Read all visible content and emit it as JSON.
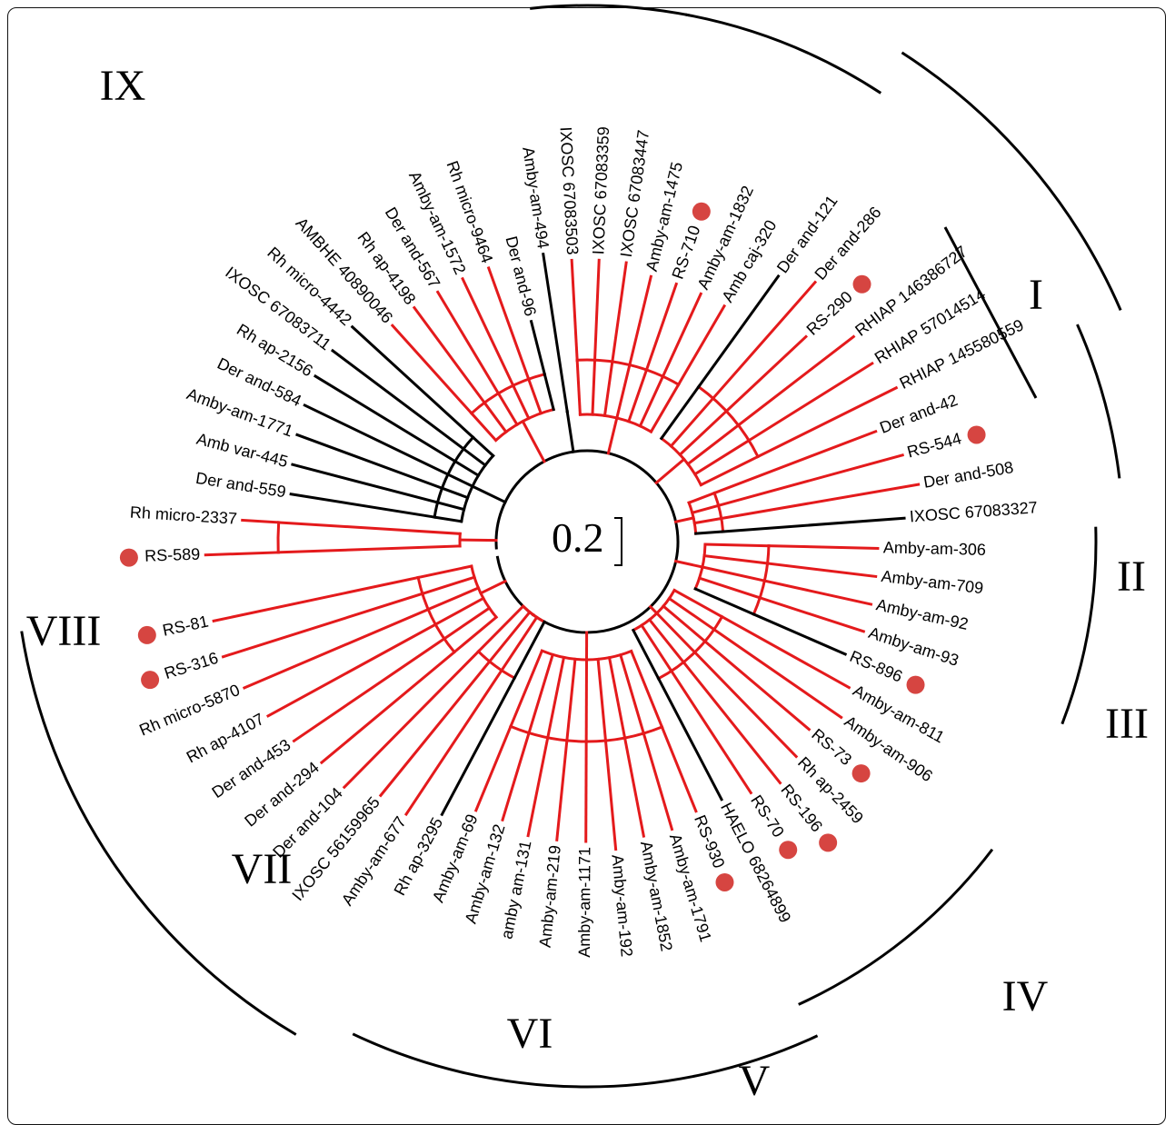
{
  "scale_label": "0.2",
  "colors": {
    "highlight": "#e41a1c",
    "default": "#000000",
    "marker": "#d64541"
  },
  "clades": [
    "I",
    "II",
    "III",
    "IV",
    "V",
    "VI",
    "VII",
    "VIII",
    "IX"
  ],
  "leaves": [
    {
      "label": "RS-589",
      "red": true,
      "dot": true
    },
    {
      "label": "Rh micro-2337",
      "red": true
    },
    {
      "label": "Der and-559"
    },
    {
      "label": "Amb var-445"
    },
    {
      "label": "Amby-am-1771"
    },
    {
      "label": "Der and-584"
    },
    {
      "label": "Rh ap-2156"
    },
    {
      "label": "IXOSC 67083711"
    },
    {
      "label": "Rh micro-4442"
    },
    {
      "label": "AMBHE 40890046",
      "red": true
    },
    {
      "label": "Rh ap-4198",
      "red": true
    },
    {
      "label": "Der and-567",
      "red": true
    },
    {
      "label": "Amby-am-1572",
      "red": true
    },
    {
      "label": "Rh micro-9464",
      "red": true
    },
    {
      "label": "Der and-96"
    },
    {
      "label": "Amby-am-494"
    },
    {
      "label": "IXOSC 67083503",
      "red": true
    },
    {
      "label": "IXOSC 67083359",
      "red": true
    },
    {
      "label": "IXOSC 67083447",
      "red": true
    },
    {
      "label": "Amby-am-1475",
      "red": true
    },
    {
      "label": "RS-710",
      "red": true,
      "dot": true
    },
    {
      "label": "Amby-am-1832",
      "red": true
    },
    {
      "label": "Amb caj-320",
      "red": true
    },
    {
      "label": "Der and-121"
    },
    {
      "label": "Der and-286",
      "red": true
    },
    {
      "label": "RS-290",
      "red": true,
      "dot": true
    },
    {
      "label": "RHIAP 146386727",
      "red": true
    },
    {
      "label": "RHIAP 57014514",
      "red": true
    },
    {
      "label": "RHIAP 145580559",
      "red": true
    },
    {
      "label": "Der and-42",
      "red": true
    },
    {
      "label": "RS-544",
      "red": true,
      "dot": true
    },
    {
      "label": "Der and-508",
      "red": true
    },
    {
      "label": "IXOSC 67083327"
    },
    {
      "label": "Amby-am-306",
      "red": true
    },
    {
      "label": "Amby-am-709",
      "red": true
    },
    {
      "label": "Amby-am-92",
      "red": true
    },
    {
      "label": "Amby-am-93",
      "red": true
    },
    {
      "label": "RS-896",
      "dot": true
    },
    {
      "label": "Amby-am-811",
      "red": true
    },
    {
      "label": "Amby-am-906",
      "red": true
    },
    {
      "label": "RS-73",
      "red": true,
      "dot": true
    },
    {
      "label": "Rh ap-2459",
      "red": true
    },
    {
      "label": "RS-196",
      "red": true,
      "dot": true
    },
    {
      "label": "RS-70",
      "red": true,
      "dot": true
    },
    {
      "label": "HAELO 68264899"
    },
    {
      "label": "RS-930",
      "red": true,
      "dot": true
    },
    {
      "label": "Amby-am-1791",
      "red": true
    },
    {
      "label": "Amby-am-1852",
      "red": true
    },
    {
      "label": "Amby-am-192",
      "red": true
    },
    {
      "label": "Amby-am-1171",
      "red": true
    },
    {
      "label": "Amby-am-219",
      "red": true
    },
    {
      "label": "amby am-131",
      "red": true
    },
    {
      "label": "Amby-am-132",
      "red": true
    },
    {
      "label": "Amby-am-69",
      "red": true
    },
    {
      "label": "Rh ap-3295"
    },
    {
      "label": "Amby-am-677",
      "red": true
    },
    {
      "label": "IXOSC 56159965",
      "red": true
    },
    {
      "label": "Der and-104",
      "red": true
    },
    {
      "label": "Der and-294",
      "red": true
    },
    {
      "label": "Der and-453",
      "red": true
    },
    {
      "label": "Rh ap-4107",
      "red": true
    },
    {
      "label": "Rh micro-5870",
      "red": true
    },
    {
      "label": "RS-316",
      "red": true,
      "dot": true
    },
    {
      "label": "RS-81",
      "red": true,
      "dot": true
    }
  ]
}
